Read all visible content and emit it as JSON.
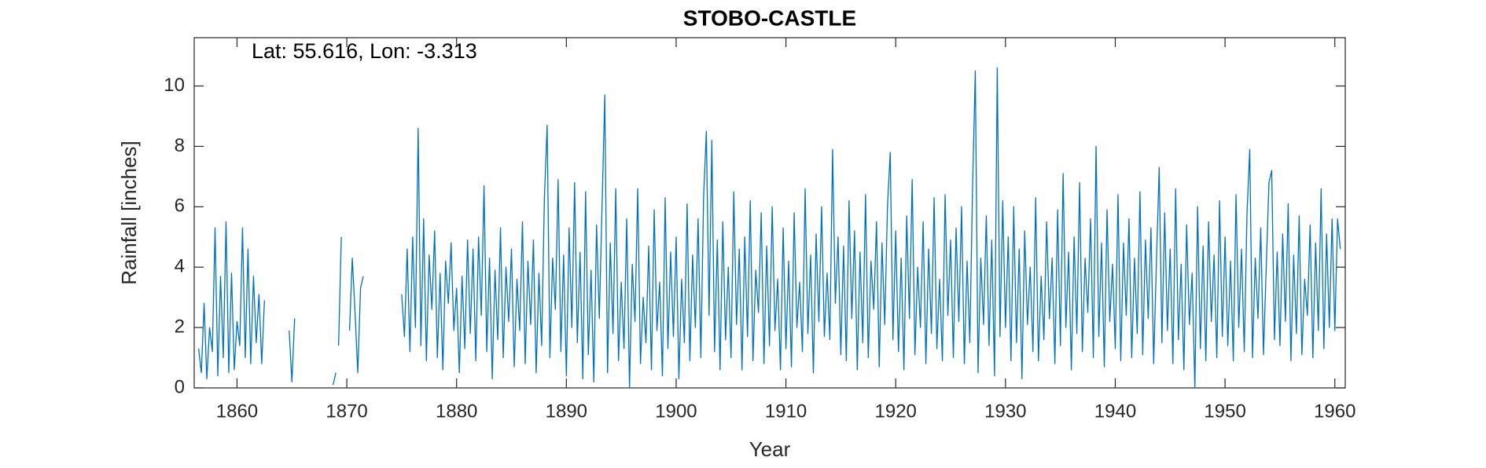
{
  "chart_data": {
    "type": "line",
    "title": "STOBO-CASTLE",
    "annotation": "Lat: 55.616, Lon: -3.313",
    "x_label": "Year",
    "y_label": "Rainfall [inches]",
    "xlim": [
      1856.1,
      1960.95
    ],
    "ylim": [
      0,
      11.6
    ],
    "xticks": [
      1860,
      1870,
      1880,
      1890,
      1900,
      1910,
      1920,
      1930,
      1940,
      1950,
      1960
    ],
    "yticks": [
      0,
      2,
      4,
      6,
      8,
      10
    ],
    "x": [
      1856.5,
      1856.75,
      1857,
      1857.25,
      1857.5,
      1857.75,
      1858,
      1858.25,
      1858.5,
      1858.75,
      1859,
      1859.25,
      1859.5,
      1859.75,
      1860,
      1860.25,
      1860.5,
      1860.75,
      1861,
      1861.25,
      1861.5,
      1861.75,
      1862,
      1862.25,
      1862.5,
      1863.5,
      1864.75,
      1865,
      1865.25,
      1867,
      1868.75,
      1869,
      1869.1,
      1869.25,
      1869.5,
      1869.75,
      1870.25,
      1870.5,
      1870.75,
      1871,
      1871.25,
      1871.5,
      1873,
      1875,
      1875.25,
      1875.5,
      1875.75,
      1876,
      1876.25,
      1876.5,
      1876.75,
      1877,
      1877.25,
      1877.5,
      1877.75,
      1878,
      1878.25,
      1878.5,
      1878.75,
      1879,
      1879.25,
      1879.5,
      1879.75,
      1880,
      1880.25,
      1880.5,
      1880.75,
      1881,
      1881.25,
      1881.5,
      1881.75,
      1882,
      1882.25,
      1882.5,
      1882.75,
      1883,
      1883.25,
      1883.5,
      1883.75,
      1884,
      1884.25,
      1884.5,
      1884.75,
      1885,
      1885.25,
      1885.5,
      1885.75,
      1886,
      1886.25,
      1886.5,
      1886.75,
      1887,
      1887.25,
      1887.5,
      1887.75,
      1888,
      1888.25,
      1888.5,
      1888.75,
      1889,
      1889.25,
      1889.5,
      1889.75,
      1890,
      1890.25,
      1890.5,
      1890.75,
      1891,
      1891.25,
      1891.5,
      1891.75,
      1892,
      1892.25,
      1892.5,
      1892.75,
      1893,
      1893.25,
      1893.5,
      1893.75,
      1894,
      1894.25,
      1894.5,
      1894.75,
      1895,
      1895.25,
      1895.5,
      1895.75,
      1896,
      1896.25,
      1896.5,
      1896.75,
      1897,
      1897.25,
      1897.5,
      1897.75,
      1898,
      1898.25,
      1898.5,
      1898.75,
      1899,
      1899.25,
      1899.5,
      1899.75,
      1900,
      1900.25,
      1900.5,
      1900.75,
      1901,
      1901.25,
      1901.5,
      1901.75,
      1902,
      1902.25,
      1902.5,
      1902.75,
      1903,
      1903.25,
      1903.5,
      1903.75,
      1904,
      1904.25,
      1904.5,
      1904.75,
      1905,
      1905.25,
      1905.5,
      1905.75,
      1906,
      1906.25,
      1906.5,
      1906.75,
      1907,
      1907.25,
      1907.5,
      1907.75,
      1908,
      1908.25,
      1908.5,
      1908.75,
      1909,
      1909.25,
      1909.5,
      1909.75,
      1910,
      1910.25,
      1910.5,
      1910.75,
      1911,
      1911.25,
      1911.5,
      1911.75,
      1912,
      1912.25,
      1912.5,
      1912.75,
      1913,
      1913.25,
      1913.5,
      1913.75,
      1914,
      1914.25,
      1914.5,
      1914.75,
      1915,
      1915.25,
      1915.5,
      1915.75,
      1916,
      1916.25,
      1916.5,
      1916.75,
      1917,
      1917.25,
      1917.5,
      1917.75,
      1918,
      1918.25,
      1918.5,
      1918.75,
      1919,
      1919.25,
      1919.5,
      1919.75,
      1920,
      1920.25,
      1920.5,
      1920.75,
      1921,
      1921.25,
      1921.5,
      1921.75,
      1922,
      1922.25,
      1922.5,
      1922.75,
      1923,
      1923.25,
      1923.5,
      1923.75,
      1924,
      1924.25,
      1924.5,
      1924.75,
      1925,
      1925.25,
      1925.5,
      1925.75,
      1926,
      1926.25,
      1926.5,
      1926.75,
      1927,
      1927.25,
      1927.5,
      1927.75,
      1928,
      1928.25,
      1928.5,
      1928.75,
      1929,
      1929.25,
      1929.5,
      1929.75,
      1930,
      1930.25,
      1930.5,
      1930.75,
      1931,
      1931.25,
      1931.5,
      1931.75,
      1932,
      1932.25,
      1932.5,
      1932.75,
      1933,
      1933.25,
      1933.5,
      1933.75,
      1934,
      1934.25,
      1934.5,
      1934.75,
      1935,
      1935.25,
      1935.5,
      1935.75,
      1936,
      1936.25,
      1936.5,
      1936.75,
      1937,
      1937.25,
      1937.5,
      1937.75,
      1938,
      1938.25,
      1938.5,
      1938.75,
      1939,
      1939.25,
      1939.5,
      1939.75,
      1940,
      1940.25,
      1940.5,
      1940.75,
      1941,
      1941.25,
      1941.5,
      1941.75,
      1942,
      1942.25,
      1942.5,
      1942.75,
      1943,
      1943.25,
      1943.5,
      1943.75,
      1944,
      1944.25,
      1944.5,
      1944.75,
      1945,
      1945.25,
      1945.5,
      1945.75,
      1946,
      1946.25,
      1946.5,
      1946.75,
      1947,
      1947.25,
      1947.5,
      1947.75,
      1948,
      1948.25,
      1948.5,
      1948.75,
      1949,
      1949.25,
      1949.5,
      1949.75,
      1950,
      1950.25,
      1950.5,
      1950.75,
      1951,
      1951.25,
      1951.5,
      1951.75,
      1952,
      1952.25,
      1952.5,
      1952.75,
      1953,
      1953.25,
      1953.5,
      1953.75,
      1954,
      1954.25,
      1954.5,
      1954.75,
      1955,
      1955.25,
      1955.5,
      1955.75,
      1956,
      1956.25,
      1956.5,
      1956.75,
      1957,
      1957.25,
      1957.5,
      1957.75,
      1958,
      1958.25,
      1958.5,
      1958.75,
      1959,
      1959.25,
      1959.5,
      1959.75,
      1960,
      1960.25,
      1960.5
    ],
    "series": [
      {
        "color": "#0072bd",
        "values": [
          1.3,
          0.5,
          2.8,
          0.3,
          2.0,
          1.2,
          5.3,
          0.4,
          3.7,
          1.0,
          5.5,
          0.5,
          3.8,
          0.6,
          2.2,
          1.4,
          5.3,
          1.0,
          4.6,
          0.8,
          3.7,
          1.5,
          3.1,
          0.8,
          2.9,
          null,
          1.9,
          0.2,
          2.3,
          null,
          0.1,
          0.5,
          null,
          1.4,
          5.0,
          null,
          1.9,
          4.3,
          2.5,
          0.5,
          3.3,
          3.7,
          null,
          3.1,
          1.7,
          4.6,
          1.2,
          5.0,
          2.0,
          8.6,
          1.4,
          5.6,
          0.9,
          4.4,
          2.6,
          5.2,
          1.0,
          3.8,
          0.6,
          4.2,
          2.8,
          4.8,
          1.9,
          3.3,
          0.5,
          3.7,
          1.3,
          4.9,
          1.8,
          4.6,
          0.9,
          5.0,
          2.4,
          6.7,
          1.2,
          4.3,
          0.3,
          3.9,
          1.6,
          5.3,
          1.0,
          4.0,
          2.2,
          4.6,
          0.7,
          3.6,
          1.9,
          5.5,
          0.8,
          4.2,
          2.1,
          4.9,
          0.5,
          3.8,
          1.4,
          6.3,
          8.7,
          1.0,
          4.3,
          2.6,
          6.9,
          1.2,
          4.4,
          0.4,
          5.3,
          2.0,
          6.8,
          1.5,
          4.5,
          0.3,
          6.5,
          1.1,
          3.9,
          0.2,
          5.4,
          2.3,
          6.0,
          9.7,
          0.5,
          4.8,
          1.8,
          6.6,
          0.9,
          3.5,
          1.3,
          5.6,
          0.0,
          4.1,
          2.2,
          6.6,
          0.8,
          3.0,
          1.5,
          4.7,
          0.6,
          5.9,
          1.9,
          3.5,
          0.4,
          6.3,
          1.3,
          4.5,
          1.7,
          5.0,
          0.3,
          3.6,
          1.5,
          6.1,
          0.9,
          4.4,
          2.0,
          5.6,
          1.0,
          6.3,
          8.5,
          2.4,
          8.2,
          1.2,
          4.9,
          0.6,
          5.5,
          1.6,
          4.0,
          1.0,
          6.5,
          2.1,
          4.6,
          0.6,
          5.0,
          1.7,
          6.2,
          0.9,
          3.9,
          2.5,
          5.8,
          0.8,
          4.7,
          1.4,
          6.0,
          1.9,
          3.6,
          0.6,
          5.3,
          1.3,
          4.2,
          0.7,
          5.8,
          2.0,
          3.5,
          1.2,
          6.6,
          1.8,
          4.4,
          0.5,
          5.1,
          2.2,
          6.0,
          1.7,
          3.8,
          1.6,
          7.9,
          2.8,
          5.0,
          1.1,
          4.7,
          0.9,
          6.2,
          2.3,
          5.2,
          0.6,
          4.5,
          1.5,
          6.4,
          1.0,
          4.2,
          2.6,
          5.5,
          0.7,
          4.8,
          2.1,
          6.0,
          7.8,
          1.6,
          5.2,
          1.2,
          4.3,
          0.6,
          5.7,
          2.3,
          6.9,
          1.1,
          4.0,
          2.0,
          5.5,
          0.8,
          4.6,
          1.8,
          6.3,
          1.3,
          3.6,
          0.9,
          6.4,
          2.4,
          4.9,
          1.0,
          5.3,
          2.2,
          6.0,
          0.8,
          4.2,
          1.5,
          6.6,
          10.5,
          0.5,
          4.3,
          2.1,
          5.7,
          1.4,
          4.9,
          0.4,
          10.6,
          1.7,
          6.2,
          2.0,
          5.0,
          0.9,
          6.0,
          1.5,
          4.6,
          0.3,
          5.2,
          2.1,
          4.0,
          1.2,
          6.3,
          0.9,
          3.7,
          1.6,
          5.5,
          2.3,
          4.3,
          0.8,
          5.9,
          1.4,
          7.1,
          2.0,
          4.5,
          0.6,
          5.0,
          1.8,
          6.8,
          1.2,
          4.3,
          2.5,
          5.6,
          1.0,
          8.0,
          1.7,
          4.8,
          0.7,
          5.9,
          2.2,
          4.1,
          1.3,
          6.4,
          0.9,
          4.8,
          2.4,
          5.6,
          1.0,
          4.3,
          1.8,
          6.5,
          1.1,
          4.9,
          2.3,
          5.3,
          0.8,
          4.2,
          7.3,
          1.5,
          5.8,
          1.9,
          4.6,
          0.8,
          6.6,
          1.6,
          4.1,
          0.6,
          5.4,
          2.1,
          3.8,
          0.0,
          6.0,
          1.3,
          4.7,
          0.9,
          5.5,
          2.2,
          4.4,
          1.0,
          6.2,
          1.7,
          5.0,
          1.4,
          4.2,
          0.9,
          6.4,
          2.0,
          4.6,
          1.2,
          5.8,
          7.9,
          1.0,
          4.3,
          2.3,
          5.3,
          1.1,
          4.0,
          6.8,
          7.2,
          1.6,
          4.5,
          1.4,
          5.1,
          2.2,
          6.1,
          0.9,
          4.4,
          1.8,
          5.7,
          1.1,
          3.6,
          2.4,
          5.4,
          1.0,
          4.8,
          1.9,
          6.6,
          1.3,
          5.1,
          2.0,
          5.6,
          1.9,
          5.6,
          4.6
        ]
      }
    ]
  }
}
